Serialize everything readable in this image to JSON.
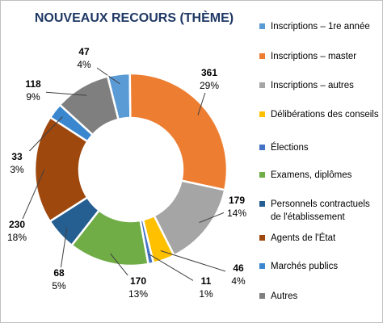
{
  "chart_data": {
    "type": "donut",
    "title": "NOUVEAUX RECOURS (THÈME)",
    "categories": [
      "Inscriptions – 1re année",
      "Inscriptions – master",
      "Inscriptions – autres",
      "Délibérations des conseils",
      "Élections",
      "Examens, diplômes",
      "Personnels contractuels de l'établissement",
      "Agents de l'État",
      "Marchés publics",
      "Autres"
    ],
    "values": [
      47,
      361,
      179,
      46,
      11,
      170,
      68,
      230,
      33,
      118
    ],
    "percent_labels": [
      "4%",
      "29%",
      "14%",
      "4%",
      "1%",
      "13%",
      "5%",
      "18%",
      "3%",
      "9%"
    ],
    "colors": [
      "#5b9bd5",
      "#ed7d31",
      "#a5a5a5",
      "#ffc000",
      "#4472c4",
      "#70ad47",
      "#255e91",
      "#9e480e",
      "#3a87cf",
      "#7f7f7f"
    ],
    "legend": "right"
  }
}
